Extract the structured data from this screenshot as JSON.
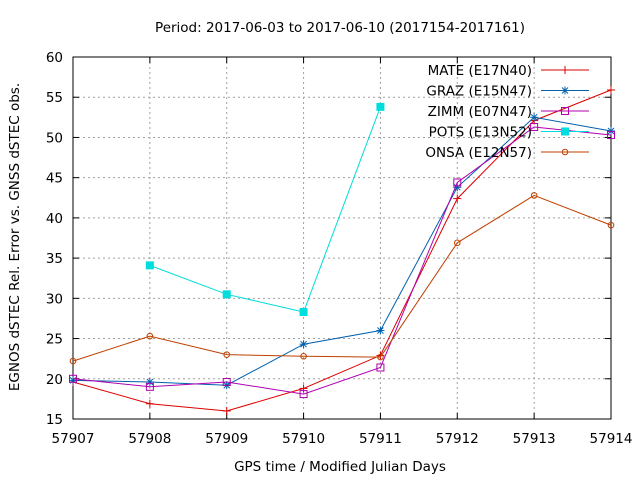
{
  "chart_data": {
    "type": "line",
    "title": "Period: 2017-06-03 to 2017-06-10 (2017154-2017161)",
    "xlabel": "GPS time / Modified Julian Days",
    "ylabel": "EGNOS dSTEC Rel. Error vs. GNSS dSTEC obs.",
    "xlim": [
      57907,
      57914
    ],
    "ylim": [
      15,
      60
    ],
    "xticks": [
      "57907",
      "57908",
      "57909",
      "57910",
      "57911",
      "57912",
      "57913",
      "57914"
    ],
    "yticks": [
      "15",
      "20",
      "25",
      "30",
      "35",
      "40",
      "45",
      "50",
      "55",
      "60"
    ],
    "grid": true,
    "legend_position": "top-right",
    "series": [
      {
        "name": "MATE (E17N40)",
        "color": "#dd0000",
        "marker": "plus",
        "points": [
          {
            "x": 57907,
            "y": 19.6
          },
          {
            "x": 57908,
            "y": 16.9
          },
          {
            "x": 57909,
            "y": 16.0
          },
          {
            "x": 57910,
            "y": 18.8
          },
          {
            "x": 57911,
            "y": 22.9
          },
          {
            "x": 57912,
            "y": 42.4
          },
          {
            "x": 57913,
            "y": 52.1
          },
          {
            "x": 57914,
            "y": 55.9
          }
        ]
      },
      {
        "name": "GRAZ (E15N47)",
        "color": "#0060ad",
        "marker": "star",
        "points": [
          {
            "x": 57907,
            "y": 19.8
          },
          {
            "x": 57908,
            "y": 19.6
          },
          {
            "x": 57909,
            "y": 19.2
          },
          {
            "x": 57910,
            "y": 24.3
          },
          {
            "x": 57911,
            "y": 26.0
          },
          {
            "x": 57912,
            "y": 43.8
          },
          {
            "x": 57913,
            "y": 52.5
          },
          {
            "x": 57914,
            "y": 50.8
          }
        ]
      },
      {
        "name": "ZIMM (E07N47)",
        "color": "#b000b0",
        "marker": "open-square",
        "points": [
          {
            "x": 57907,
            "y": 20.0
          },
          {
            "x": 57908,
            "y": 19.0
          },
          {
            "x": 57909,
            "y": 19.6
          },
          {
            "x": 57910,
            "y": 18.1
          },
          {
            "x": 57911,
            "y": 21.4
          },
          {
            "x": 57912,
            "y": 44.4
          },
          {
            "x": 57913,
            "y": 51.3
          },
          {
            "x": 57914,
            "y": 50.3
          }
        ]
      },
      {
        "name": "POTS (E13N52)",
        "color": "#00dddd",
        "marker": "filled-square",
        "points": [
          {
            "x": 57908,
            "y": 34.1
          },
          {
            "x": 57909,
            "y": 30.5
          },
          {
            "x": 57910,
            "y": 28.3
          },
          {
            "x": 57911,
            "y": 53.8
          }
        ]
      },
      {
        "name": "ONSA (E12N57)",
        "color": "#c04000",
        "marker": "open-circle",
        "points": [
          {
            "x": 57907,
            "y": 22.2
          },
          {
            "x": 57908,
            "y": 25.3
          },
          {
            "x": 57909,
            "y": 23.0
          },
          {
            "x": 57910,
            "y": 22.8
          },
          {
            "x": 57911,
            "y": 22.7
          },
          {
            "x": 57912,
            "y": 36.9
          },
          {
            "x": 57913,
            "y": 42.8
          },
          {
            "x": 57914,
            "y": 39.1
          }
        ]
      }
    ]
  }
}
